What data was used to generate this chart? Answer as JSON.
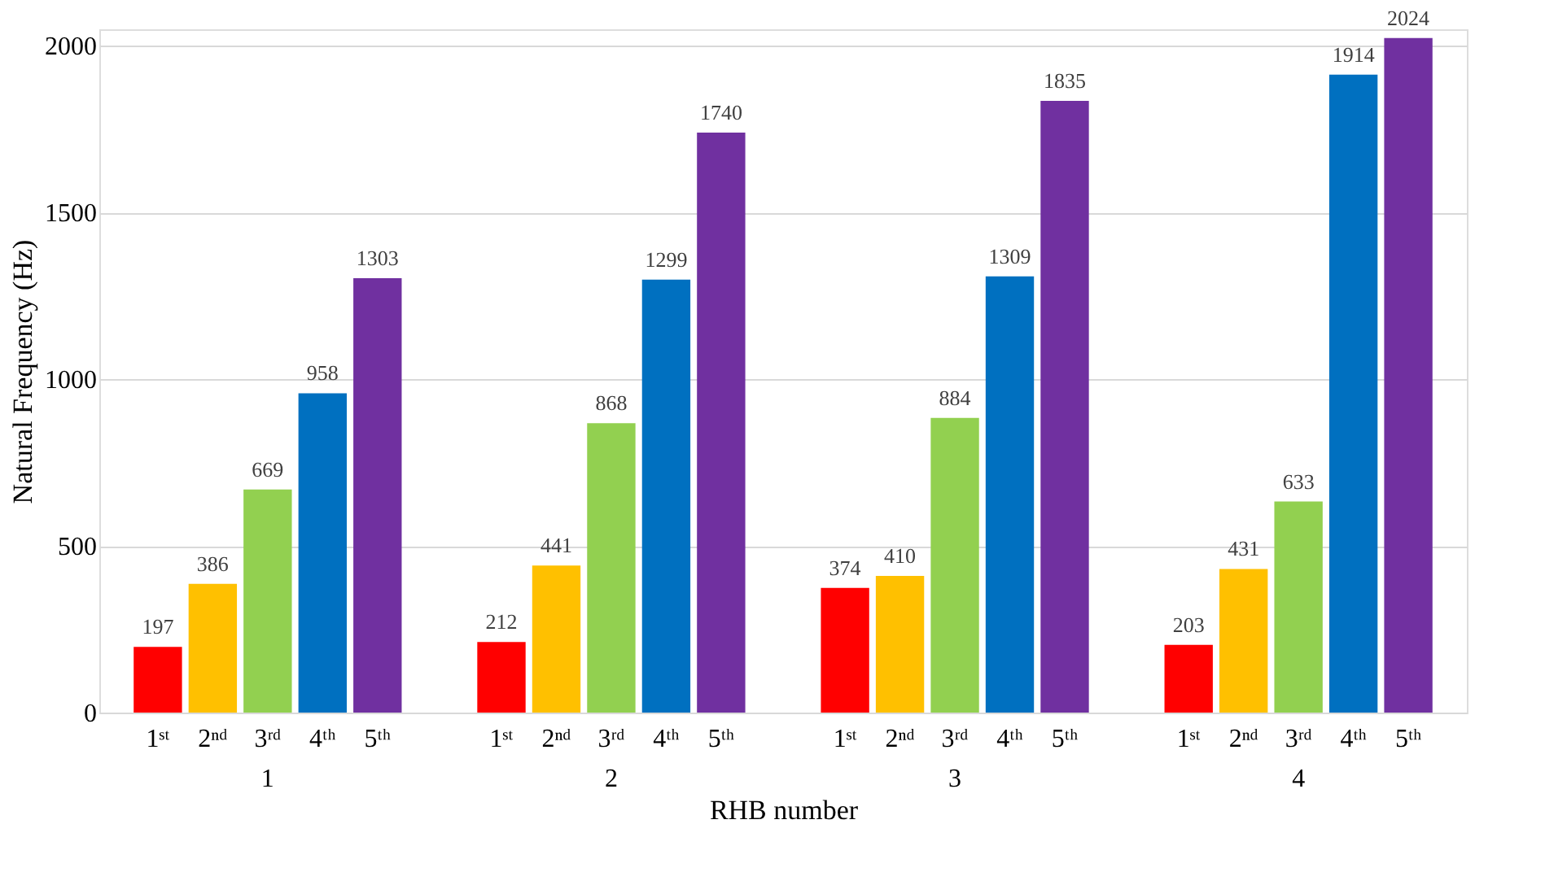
{
  "chart_data": {
    "type": "bar",
    "xlabel": "RHB number",
    "ylabel": "Natural Frequency (Hz)",
    "categories": [
      "1",
      "2",
      "3",
      "4"
    ],
    "series": [
      {
        "name": "1ˢᵗ",
        "color": "#ff0000",
        "values": [
          197,
          212,
          374,
          203
        ]
      },
      {
        "name": "2ⁿᵈ",
        "color": "#ffc000",
        "values": [
          386,
          441,
          410,
          431
        ]
      },
      {
        "name": "3ʳᵈ",
        "color": "#92d050",
        "values": [
          669,
          868,
          884,
          633
        ]
      },
      {
        "name": "4ᵗʰ",
        "color": "#0070c0",
        "values": [
          958,
          1299,
          1309,
          1914
        ]
      },
      {
        "name": "5ᵗʰ",
        "color": "#7030a0",
        "values": [
          1303,
          1740,
          1835,
          2024
        ]
      }
    ],
    "ylim": [
      0,
      2050
    ],
    "yticks": [
      0,
      500,
      1000,
      1500,
      2000
    ],
    "grid": "y",
    "data_labels": true,
    "legend": false
  }
}
